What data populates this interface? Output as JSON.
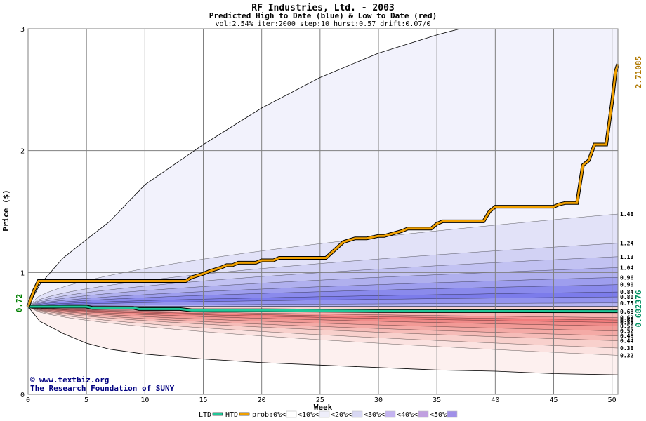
{
  "chart_data": {
    "type": "area",
    "title": "RF Industries, Ltd. - 2003",
    "subtitle": "Predicted High to Date (blue) &  Low to Date (red)",
    "params": "vol:2.54% iter:2000 step:10 hurst:0.57 drift:0.07/0",
    "xlabel": "Week",
    "ylabel": "Price ($)",
    "xlim": [
      0,
      50.5
    ],
    "ylim": [
      0,
      3
    ],
    "x_ticks": [
      "0",
      "5",
      "10",
      "15",
      "20",
      "25",
      "30",
      "35",
      "40",
      "45",
      "50"
    ],
    "y_ticks": [
      "0",
      "1",
      "2",
      "3"
    ],
    "start_price": "0.72",
    "ltd_end_value": "0.682376",
    "htd_end_value": "2.71085",
    "colors": {
      "htd": "#f0a000",
      "ltd": "#20c898",
      "start_label": "#008000",
      "ltd_label": "#009060",
      "htd_label": "#b07800",
      "title": "#000080"
    },
    "band_quantiles_high": [
      0.75,
      0.8,
      0.84,
      0.9,
      0.96,
      1.04,
      1.13,
      1.24,
      1.48
    ],
    "band_quantiles_low": [
      0.68,
      0.63,
      0.61,
      0.59,
      0.56,
      0.52,
      0.48,
      0.44,
      0.38,
      0.32
    ],
    "high_envelope": {
      "x": [
        0,
        1,
        3,
        5,
        7,
        10,
        15,
        20,
        25,
        30,
        35,
        37
      ],
      "y": [
        0.72,
        0.9,
        1.12,
        1.27,
        1.42,
        1.72,
        2.05,
        2.35,
        2.6,
        2.8,
        2.95,
        3.0
      ]
    },
    "low_envelope": {
      "x": [
        0,
        1,
        3,
        5,
        7,
        10,
        15,
        20,
        25,
        30,
        35,
        40,
        45,
        50.5
      ],
      "y": [
        0.72,
        0.6,
        0.5,
        0.42,
        0.37,
        0.33,
        0.29,
        0.26,
        0.24,
        0.22,
        0.2,
        0.19,
        0.17,
        0.16
      ]
    },
    "htd_series": {
      "name": "HTD",
      "x": [
        0,
        0.5,
        0.9,
        9.5,
        13.5,
        14.0,
        15.0,
        15.5,
        16.5,
        17.0,
        17.5,
        18.0,
        19.5,
        20.0,
        21.0,
        21.5,
        25.5,
        27.0,
        28.0,
        29.0,
        30.0,
        30.5,
        32.0,
        32.5,
        34.5,
        35.0,
        35.5,
        39.0,
        39.5,
        40.0,
        42.0,
        44.0,
        45.0,
        45.5,
        46.0,
        47.0,
        47.5,
        48.0,
        48.5,
        49.5,
        50.0,
        50.3,
        50.5
      ],
      "y": [
        0.72,
        0.85,
        0.93,
        0.93,
        0.93,
        0.96,
        0.99,
        1.01,
        1.04,
        1.06,
        1.06,
        1.08,
        1.08,
        1.1,
        1.1,
        1.12,
        1.12,
        1.25,
        1.28,
        1.28,
        1.3,
        1.3,
        1.34,
        1.36,
        1.36,
        1.4,
        1.42,
        1.42,
        1.5,
        1.54,
        1.54,
        1.54,
        1.54,
        1.56,
        1.57,
        1.57,
        1.88,
        1.92,
        2.05,
        2.05,
        2.4,
        2.65,
        2.71
      ]
    },
    "ltd_series": {
      "name": "LTD",
      "x": [
        0,
        1,
        5,
        5.5,
        9,
        9.5,
        13,
        14,
        20,
        30,
        40,
        50.5
      ],
      "y": [
        0.72,
        0.72,
        0.72,
        0.71,
        0.71,
        0.7,
        0.7,
        0.69,
        0.69,
        0.684,
        0.683,
        0.682
      ]
    },
    "grid": true,
    "legend": {
      "position": "bottom",
      "items": [
        {
          "label": "LTD",
          "color": "#20c898",
          "kind": "line"
        },
        {
          "label": "HTD",
          "color": "#f0a000",
          "kind": "line"
        },
        {
          "label": "prob:0%<",
          "color": "#ffffff",
          "kind": "swatch"
        },
        {
          "label": "<10%<",
          "color": "#eeeefa",
          "kind": "swatch"
        },
        {
          "label": "<20%<",
          "color": "#d8d8f4",
          "kind": "swatch"
        },
        {
          "label": "<30%<",
          "color": "#c4b4f0",
          "kind": "swatch"
        },
        {
          "label": "<40%<",
          "color": "#c0a0e0",
          "kind": "swatch"
        },
        {
          "label": "<50%",
          "color": "#a090e8",
          "kind": "swatch"
        }
      ]
    }
  },
  "credit": {
    "line1": "www.textbiz.org",
    "line2": "The Research Foundation of SUNY"
  }
}
